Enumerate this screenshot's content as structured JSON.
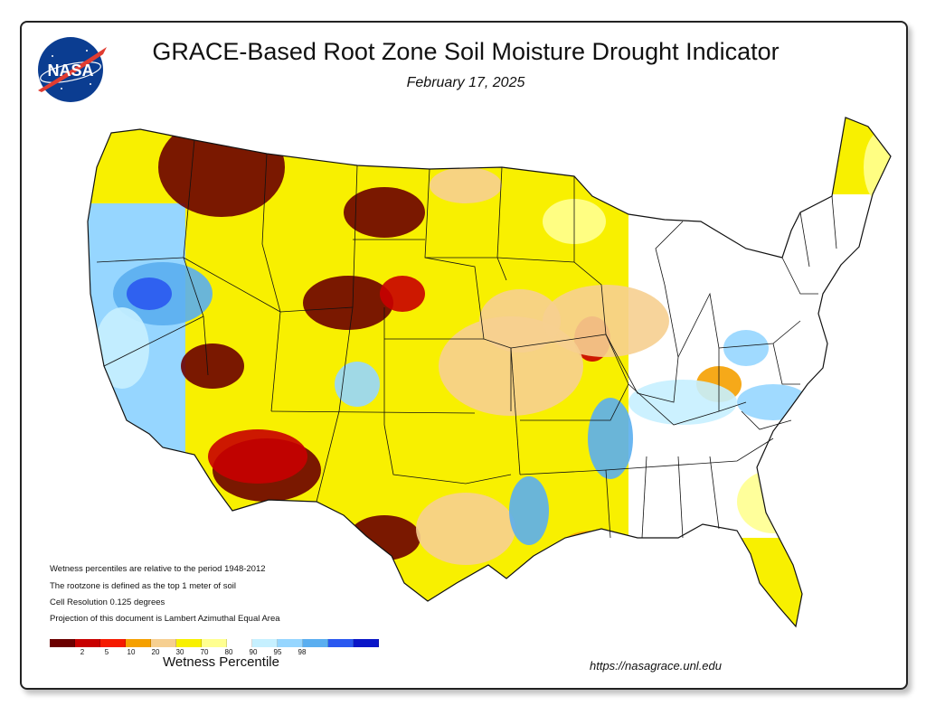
{
  "header": {
    "title": "GRACE-Based Root Zone Soil  Moisture Drought Indicator",
    "date": "February 17, 2025",
    "logo_text": "NASA"
  },
  "notes": [
    "Wetness percentiles are relative to the period 1948-2012",
    "The rootzone is defined as the top 1 meter of soil",
    "Cell Resolution 0.125 degrees",
    "Projection of this document is Lambert Azimuthal Equal Area"
  ],
  "legend": {
    "title": "Wetness Percentile",
    "colors": [
      "#6b0000",
      "#c80000",
      "#f51a00",
      "#f5a000",
      "#f6cf90",
      "#f8f000",
      "#ffff90",
      "#ffffff",
      "#c6f0ff",
      "#96d6ff",
      "#5aaef0",
      "#2a58f0",
      "#0a16c8"
    ],
    "ticks": [
      "2",
      "5",
      "10",
      "20",
      "30",
      "70",
      "80",
      "90",
      "95",
      "98"
    ]
  },
  "footer": {
    "url": "https://nasagrace.unl.edu"
  }
}
